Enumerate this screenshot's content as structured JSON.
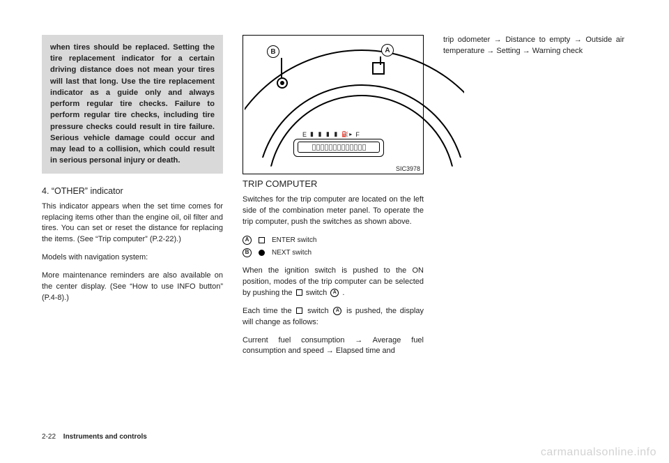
{
  "col1": {
    "warning": "when tires should be replaced. Setting the tire replacement indicator for a certain driving distance does not mean your tires will last that long. Use the tire replacement indicator as a guide only and always perform regular tire checks. Failure to perform regular tire checks, including tire pressure checks could result in tire failure. Serious vehicle damage could occur and may lead to a collision, which could result in serious personal injury or death.",
    "sub_heading": "4. “OTHER” indicator",
    "p1": "This indicator appears when the set time comes for replacing items other than the engine oil, oil filter and tires. You can set or reset the distance for replacing the items. (See “Trip computer” (P.2-22).)",
    "p2": "Models with navigation system:",
    "p3": "More maintenance reminders are also available on the center display. (See “How to use INFO button” (P.4-8).)"
  },
  "col2": {
    "fig_label": "SIC3978",
    "callout_a": "A",
    "callout_b": "B",
    "fuel_e": "E",
    "fuel_f": "F",
    "section_heading": "TRIP COMPUTER",
    "p1": "Switches for the trip computer are located on the left side of the combination meter panel. To operate the trip computer, push the switches as shown above.",
    "switch_a_label": "ENTER switch",
    "switch_b_label": "NEXT switch",
    "p2_a": "When the ignition switch is pushed to the ON position, modes of the trip computer can be selected by pushing the ",
    "p2_b": " switch ",
    "p2_c": " .",
    "p3_a": "Each time the ",
    "p3_b": " switch ",
    "p3_c": " is pushed, the display will change as follows:",
    "p4": "Current fuel consumption → Average fuel consumption and speed → Elapsed time and"
  },
  "col3": {
    "p1": "trip odometer → Distance to empty → Outside air temperature → Setting → Warning check"
  },
  "footer": {
    "page": "2-22",
    "section": "Instruments and controls"
  },
  "watermark": "carmanualsonline.info",
  "letters": {
    "a": "A",
    "b": "B"
  }
}
